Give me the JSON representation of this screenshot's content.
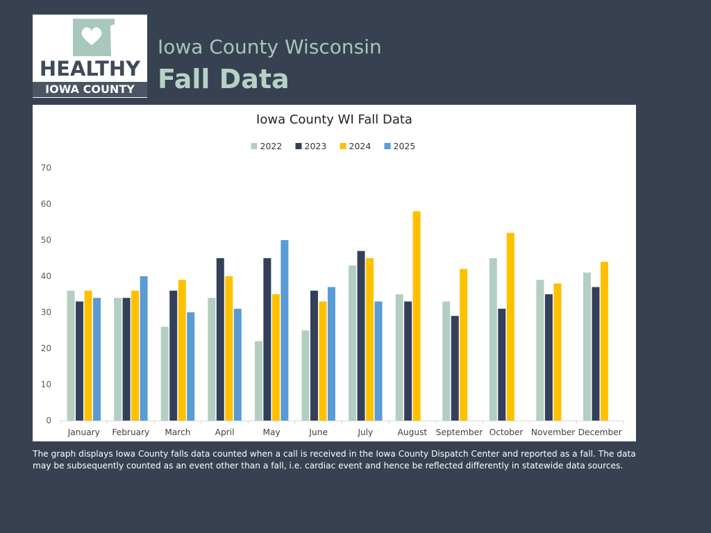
{
  "header": {
    "logo": {
      "line1": "HEALTHY",
      "line2": "IOWA COUNTY",
      "icon": "heart-state-outline-icon"
    },
    "subtitle": "Iowa County Wisconsin",
    "title": "Fall Data"
  },
  "caption": "The graph displays Iowa County falls data counted when a call is received in the Iowa County Dispatch Center and reported as a fall. The data may be subsequently counted as an event other than a fall, i.e. cardiac event and hence be reflected differently in statewide data sources.",
  "colors": {
    "background": "#374151",
    "accent": "#b7d2c5"
  },
  "chart_data": {
    "type": "bar",
    "title": "Iowa County WI Fall Data",
    "xlabel": "",
    "ylabel": "",
    "ylim": [
      0,
      70
    ],
    "yticks": [
      0,
      10,
      20,
      30,
      40,
      50,
      60,
      70
    ],
    "grid": false,
    "legend_position": "top",
    "categories": [
      "January",
      "February",
      "March",
      "April",
      "May",
      "June",
      "July",
      "August",
      "September",
      "October",
      "November",
      "December"
    ],
    "series": [
      {
        "name": "2022",
        "color": "#b3cfc2",
        "values": [
          36,
          34,
          26,
          34,
          22,
          25,
          43,
          35,
          33,
          45,
          39,
          41
        ]
      },
      {
        "name": "2023",
        "color": "#34405a",
        "values": [
          33,
          34,
          36,
          45,
          45,
          36,
          47,
          33,
          29,
          31,
          35,
          37
        ]
      },
      {
        "name": "2024",
        "color": "#ffc000",
        "values": [
          36,
          36,
          39,
          40,
          35,
          33,
          45,
          58,
          42,
          52,
          38,
          44
        ]
      },
      {
        "name": "2025",
        "color": "#5b9bd5",
        "values": [
          34,
          40,
          30,
          31,
          50,
          37,
          33,
          null,
          null,
          null,
          null,
          null
        ]
      }
    ]
  }
}
